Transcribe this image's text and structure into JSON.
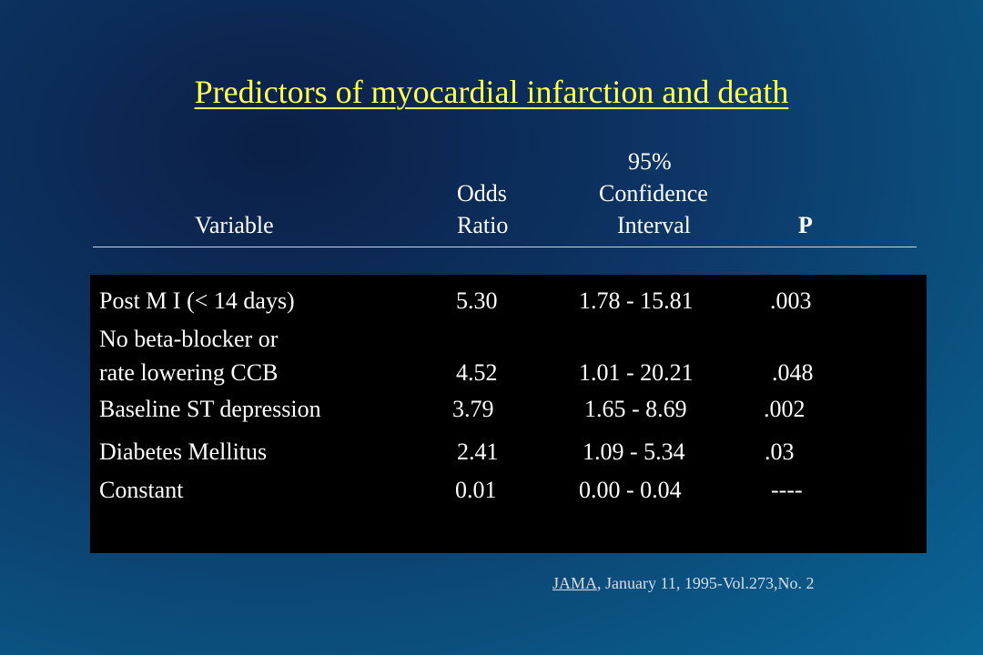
{
  "title": "Predictors of myocardial infarction and death",
  "headers": {
    "variable": "Variable",
    "odds_line1": "Odds",
    "odds_line2": "Ratio",
    "ci_line1": "95%",
    "ci_line2": "Confidence",
    "ci_line3": "Interval",
    "p": "P"
  },
  "rows": [
    {
      "variable": "Post M I (< 14 days)",
      "odds_ratio": "5.30",
      "confidence_interval": "1.78 - 15.81",
      "p": ".003"
    },
    {
      "variable_line1": "No beta-blocker or",
      "variable_line2": "rate lowering CCB",
      "odds_ratio": "4.52",
      "confidence_interval": "1.01 - 20.21",
      "p": ".048"
    },
    {
      "variable": "Baseline ST depression",
      "odds_ratio": "3.79",
      "confidence_interval": "1.65 - 8.69",
      "p": ".002"
    },
    {
      "variable": "Diabetes Mellitus",
      "odds_ratio": "2.41",
      "confidence_interval": "1.09 - 5.34",
      "p": ".03"
    },
    {
      "variable": "Constant",
      "odds_ratio": "0.01",
      "confidence_interval": "0.00 - 0.04",
      "p": "----"
    }
  ],
  "citation": {
    "journal": "JAMA",
    "details": ", January 11, 1995-Vol.273,No. 2"
  },
  "colors": {
    "title": "#ffff55",
    "table_background": "#000000",
    "slide_background": "#0d3666",
    "text": "#ffffff"
  }
}
